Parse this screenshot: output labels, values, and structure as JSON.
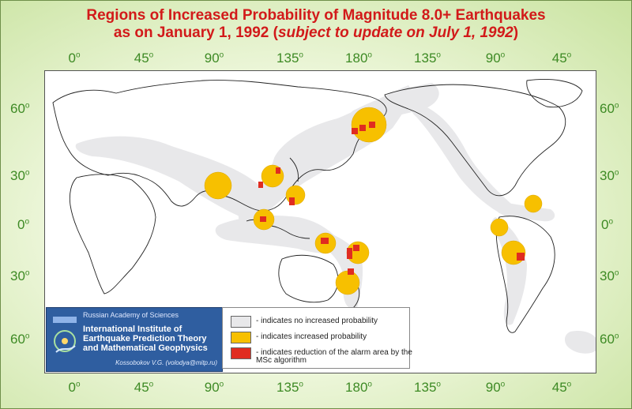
{
  "title": {
    "line1": "Regions of Increased Probability of Magnitude 8.0+ Earthquakes",
    "line2_prefix": "as on January 1, 1992 (",
    "line2_italic": "subject to update on July 1, 1992",
    "line2_suffix": ")"
  },
  "degree_symbol": "o",
  "longitude_labels": [
    "0",
    "45",
    "90",
    "135",
    "180",
    "135",
    "90",
    "45"
  ],
  "latitude_labels": [
    "60",
    "30",
    "0",
    "30",
    "60"
  ],
  "institute": {
    "academy": "Russian Academy of Sciences",
    "name_line1": "International Institute of",
    "name_line2": "Earthquake Prediction Theory",
    "name_line3": "and Mathematical Geophysics",
    "contact": "Kossobokov V.G. (volodya@mitp.ru)"
  },
  "legend": {
    "items": [
      {
        "color": "#e8e8ea",
        "text": "- indicates no increased probability"
      },
      {
        "color": "#f7c000",
        "text": "- indicates increased probability"
      },
      {
        "color": "#e02c20",
        "text": "- indicates reduction of the alarm area by the MSc algorithm"
      }
    ]
  },
  "colors": {
    "title": "#d21a1a",
    "axis_labels": "#3d8a24",
    "no_increase": "#e8e8ea",
    "increased": "#f7c000",
    "reduced": "#e02c20",
    "institute_bg": "#2f5ea0"
  }
}
